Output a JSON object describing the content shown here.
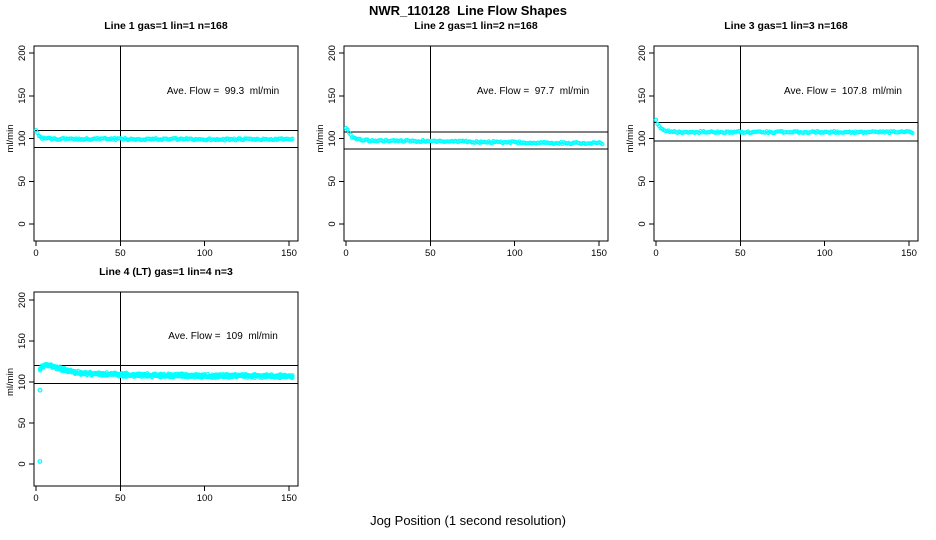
{
  "title": "NWR_110128  Line Flow Shapes",
  "xlabel": "Jog Position (1 second resolution)",
  "ylabel": "ml/min",
  "point_color": "#00ffff",
  "axis_color": "#000000",
  "marker": "open-circle",
  "chart_data": [
    {
      "type": "scatter",
      "title": "Line 1 gas=1 lin=1 n=168",
      "annotation": "Ave. Flow =  99.3  ml/min",
      "ave_flow_ml_min": 99.3,
      "n_points": 168,
      "runs": 1,
      "x_ticks": [
        0,
        50,
        100,
        150
      ],
      "y_ticks": [
        0,
        50,
        100,
        150,
        200
      ],
      "vline_x": 50,
      "hlines_ml_min": [
        109.2,
        89.4
      ],
      "x_start": 0,
      "x_end": 152,
      "series_shape": {
        "x": [
          0,
          1,
          2,
          3,
          5,
          10,
          20,
          40,
          60,
          80,
          100,
          120,
          140,
          152
        ],
        "y_ml_min": [
          110,
          107,
          103,
          101,
          100,
          99.5,
          99.5,
          99.5,
          99.3,
          99.3,
          99,
          99,
          99,
          99
        ]
      },
      "noise": 1.1,
      "outliers": []
    },
    {
      "type": "scatter",
      "title": "Line 2 gas=1 lin=2 n=168",
      "annotation": "Ave. Flow =  97.7  ml/min",
      "ave_flow_ml_min": 97.7,
      "n_points": 168,
      "runs": 1,
      "x_ticks": [
        0,
        50,
        100,
        150
      ],
      "y_ticks": [
        0,
        50,
        100,
        150,
        200
      ],
      "vline_x": 50,
      "hlines_ml_min": [
        107.5,
        87.9
      ],
      "x_start": 0,
      "x_end": 152,
      "series_shape": {
        "x": [
          0,
          1,
          2,
          3,
          4,
          6,
          10,
          20,
          40,
          60,
          80,
          100,
          120,
          140,
          152
        ],
        "y_ml_min": [
          112,
          110,
          107,
          104,
          101,
          99,
          98,
          97.5,
          97,
          96.5,
          96,
          95.5,
          95,
          94.5,
          94.5
        ]
      },
      "noise": 1.1,
      "outliers": []
    },
    {
      "type": "scatter",
      "title": "Line 3 gas=1 lin=3 n=168",
      "annotation": "Ave. Flow =  107.8  ml/min",
      "ave_flow_ml_min": 107.8,
      "n_points": 168,
      "runs": 1,
      "x_ticks": [
        0,
        50,
        100,
        150
      ],
      "y_ticks": [
        0,
        50,
        100,
        150,
        200
      ],
      "vline_x": 50,
      "hlines_ml_min": [
        118.6,
        97.0
      ],
      "x_start": 0,
      "x_end": 152,
      "series_shape": {
        "x": [
          0,
          1,
          2,
          3,
          5,
          8,
          15,
          30,
          60,
          90,
          120,
          152
        ],
        "y_ml_min": [
          121,
          117,
          113,
          111,
          109,
          108,
          107.5,
          107.5,
          107.5,
          107.5,
          107.5,
          107.5
        ]
      },
      "noise": 1.1,
      "outliers": []
    },
    {
      "type": "scatter",
      "title": "Line 4 (LT) gas=1 lin=4 n=3",
      "annotation": "Ave. Flow =  109  ml/min",
      "ave_flow_ml_min": 109,
      "n_points": 168,
      "runs": 3,
      "run_offsets": [
        -1,
        0,
        1
      ],
      "x_ticks": [
        0,
        50,
        100,
        150
      ],
      "y_ticks": [
        0,
        50,
        100,
        150,
        200
      ],
      "vline_x": 50,
      "hlines_ml_min": [
        119.9,
        98.1
      ],
      "x_start": 2.5,
      "x_end": 152,
      "series_shape": {
        "x": [
          2.5,
          4,
          5,
          7,
          9,
          12,
          15,
          20,
          25,
          30,
          40,
          50,
          60,
          80,
          100,
          120,
          140,
          152
        ],
        "y_ml_min": [
          116,
          119,
          120,
          121,
          120,
          118,
          116,
          113,
          111.5,
          110.5,
          109.5,
          109,
          108.5,
          108,
          107.5,
          107.5,
          107,
          107
        ]
      },
      "noise": 1.4,
      "outliers": [
        [
          2.3,
          3
        ],
        [
          2.4,
          90
        ]
      ]
    }
  ]
}
